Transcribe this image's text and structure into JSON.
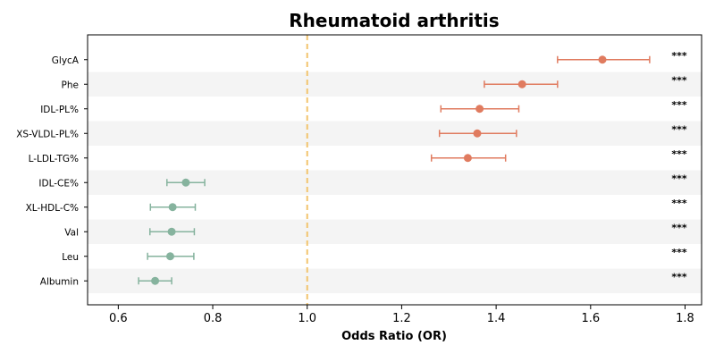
{
  "chart_data": {
    "type": "forest",
    "title": "Rheumatoid arthritis",
    "xlabel": "Odds Ratio (OR)",
    "xlim": [
      0.535,
      1.835
    ],
    "xticks": [
      0.6,
      0.8,
      1.0,
      1.2,
      1.4,
      1.6,
      1.8
    ],
    "reference_line": 1.0,
    "colors": {
      "risk": "#e07b5f",
      "protective": "#86b39e",
      "reference": "#f2c46d",
      "stripe": "#f4f4f4"
    },
    "rows": [
      {
        "label": "GlycA",
        "or": 1.625,
        "lo": 1.53,
        "hi": 1.725,
        "sig": "***",
        "group": "risk"
      },
      {
        "label": "Phe",
        "or": 1.455,
        "lo": 1.375,
        "hi": 1.53,
        "sig": "***",
        "group": "risk"
      },
      {
        "label": "IDL-PL%",
        "or": 1.365,
        "lo": 1.283,
        "hi": 1.448,
        "sig": "***",
        "group": "risk"
      },
      {
        "label": "XS-VLDL-PL%",
        "or": 1.36,
        "lo": 1.28,
        "hi": 1.443,
        "sig": "***",
        "group": "risk"
      },
      {
        "label": "L-LDL-TG%",
        "or": 1.34,
        "lo": 1.263,
        "hi": 1.42,
        "sig": "***",
        "group": "risk"
      },
      {
        "label": "IDL-CE%",
        "or": 0.743,
        "lo": 0.703,
        "hi": 0.783,
        "sig": "***",
        "group": "protective"
      },
      {
        "label": "XL-HDL-C%",
        "or": 0.715,
        "lo": 0.668,
        "hi": 0.763,
        "sig": "***",
        "group": "protective"
      },
      {
        "label": "Val",
        "or": 0.713,
        "lo": 0.667,
        "hi": 0.761,
        "sig": "***",
        "group": "protective"
      },
      {
        "label": "Leu",
        "or": 0.71,
        "lo": 0.662,
        "hi": 0.76,
        "sig": "***",
        "group": "protective"
      },
      {
        "label": "Albumin",
        "or": 0.678,
        "lo": 0.643,
        "hi": 0.713,
        "sig": "***",
        "group": "protective"
      }
    ]
  }
}
